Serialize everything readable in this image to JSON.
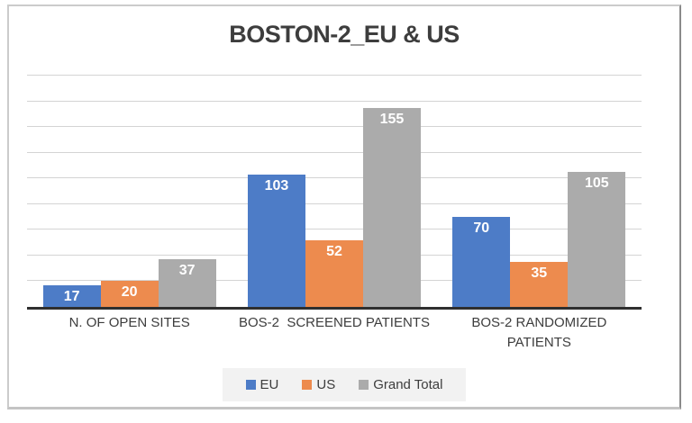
{
  "title": "BOSTON-2_EU & US",
  "chart_data": {
    "type": "bar",
    "title": "BOSTON-2_EU & US",
    "categories": [
      "N. OF OPEN SITES",
      "BOS-2  SCREENED PATIENTS",
      "BOS-2 RANDOMIZED\nPATIENTS"
    ],
    "series": [
      {
        "name": "EU",
        "color": "#4D7CC7",
        "values": [
          17,
          103,
          70
        ]
      },
      {
        "name": "US",
        "color": "#ED8B4E",
        "values": [
          20,
          52,
          35
        ]
      },
      {
        "name": "Grand Total",
        "color": "#ABABAB",
        "values": [
          37,
          155,
          105
        ]
      }
    ],
    "xlabel": "",
    "ylabel": "",
    "ylim": [
      0,
      180
    ],
    "gridline_step": 20,
    "grid": true,
    "legend_position": "bottom",
    "data_labels": "inside-end",
    "data_label_color": "#FFFFFF"
  },
  "style": {
    "gridline_color": "#D4D4D4",
    "axis_line_color": "#2F2F2F",
    "text_color": "#3D3D3D",
    "legend_bg": "#F2F2F2",
    "frame_border_color": "#CBCBCB",
    "frame_border_right_color": "#8A8A8A",
    "background": "#FFFFFF"
  }
}
